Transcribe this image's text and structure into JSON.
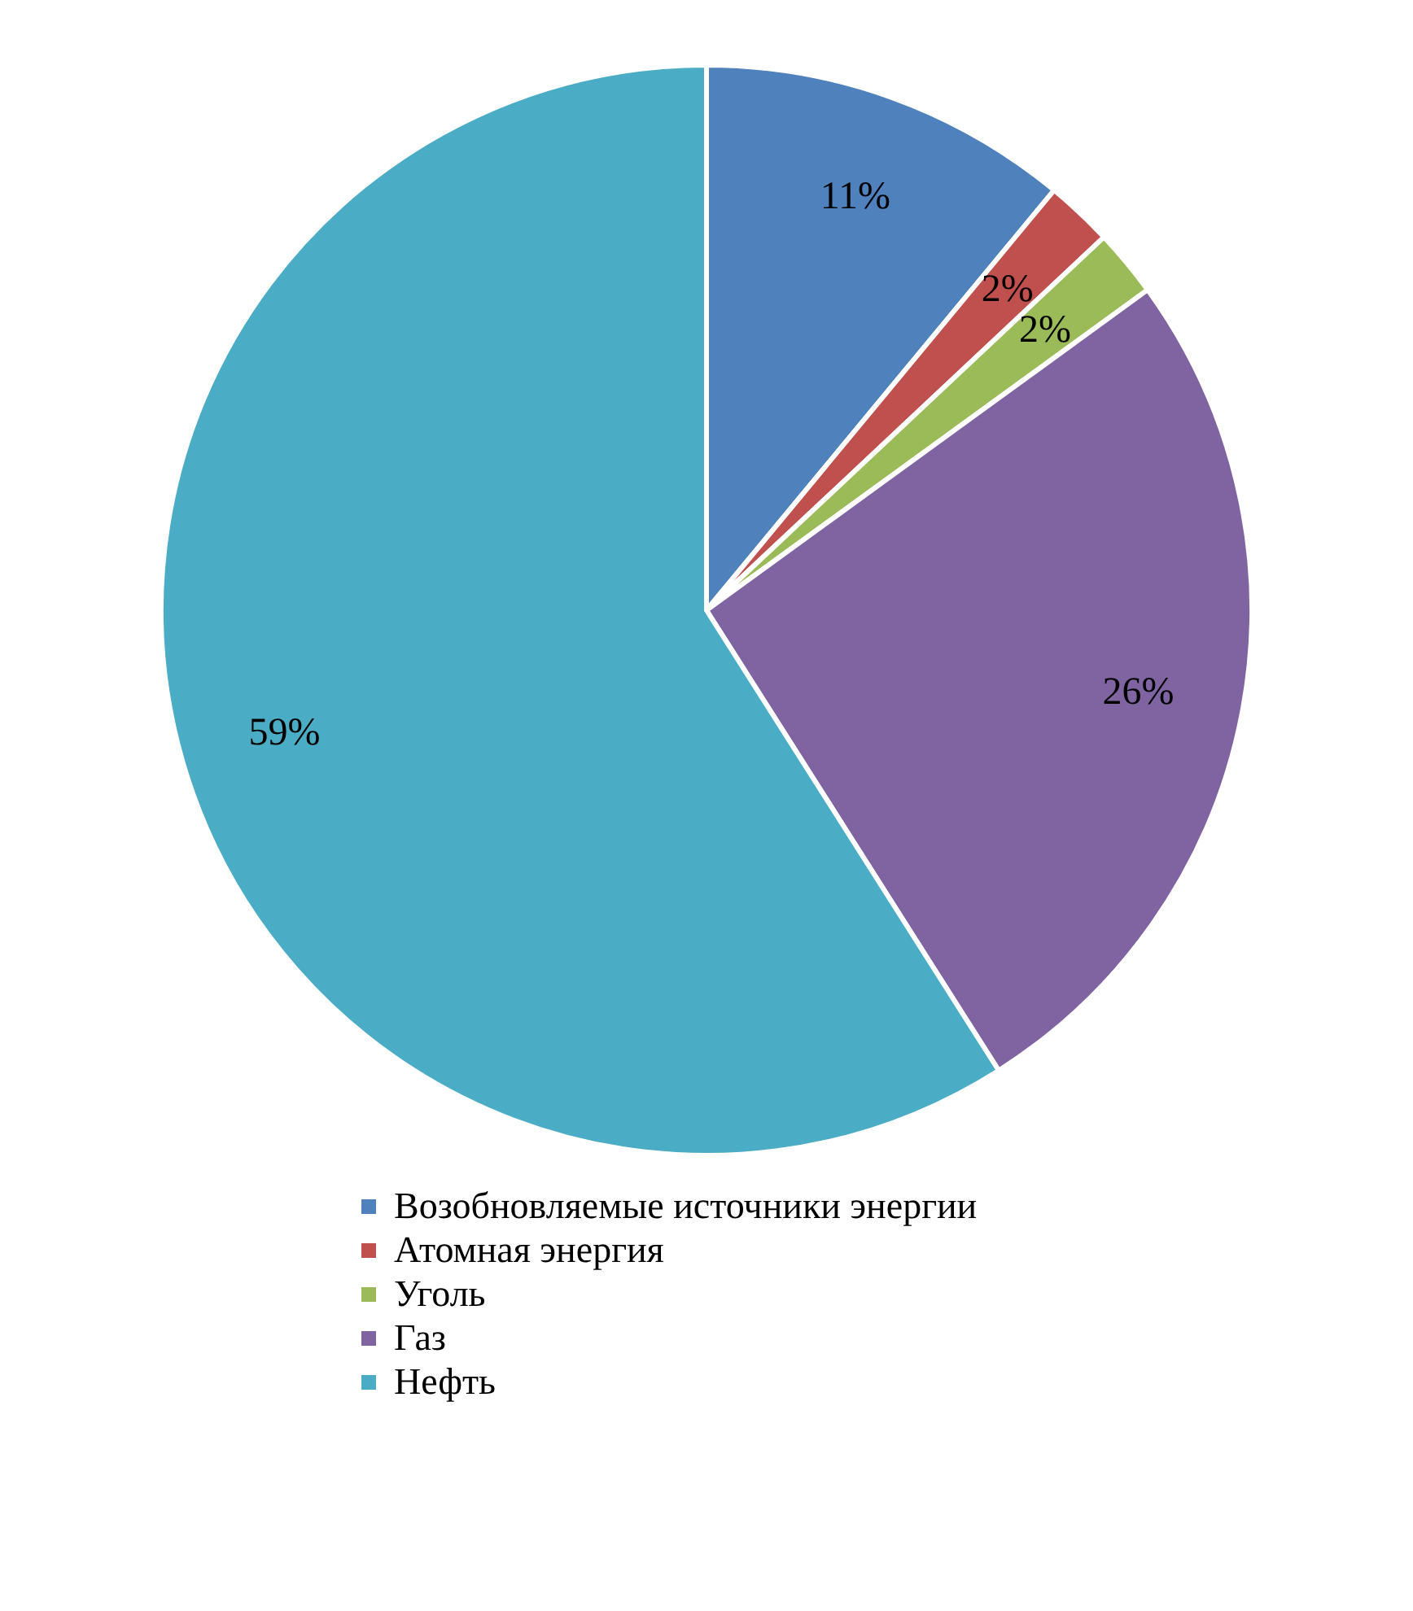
{
  "chart_data": {
    "type": "pie",
    "categories": [
      "Возобновляемые источники энергии",
      "Атомная энергия",
      "Уголь",
      "Газ",
      "Нефть"
    ],
    "values": [
      11,
      2,
      2,
      26,
      59
    ],
    "colors": [
      "#4f81bd",
      "#c0504d",
      "#9bbb59",
      "#8064a2",
      "#4bacc6"
    ],
    "value_labels": [
      "11%",
      "2%",
      "2%",
      "26%",
      "59%"
    ],
    "legend": "bottom"
  }
}
